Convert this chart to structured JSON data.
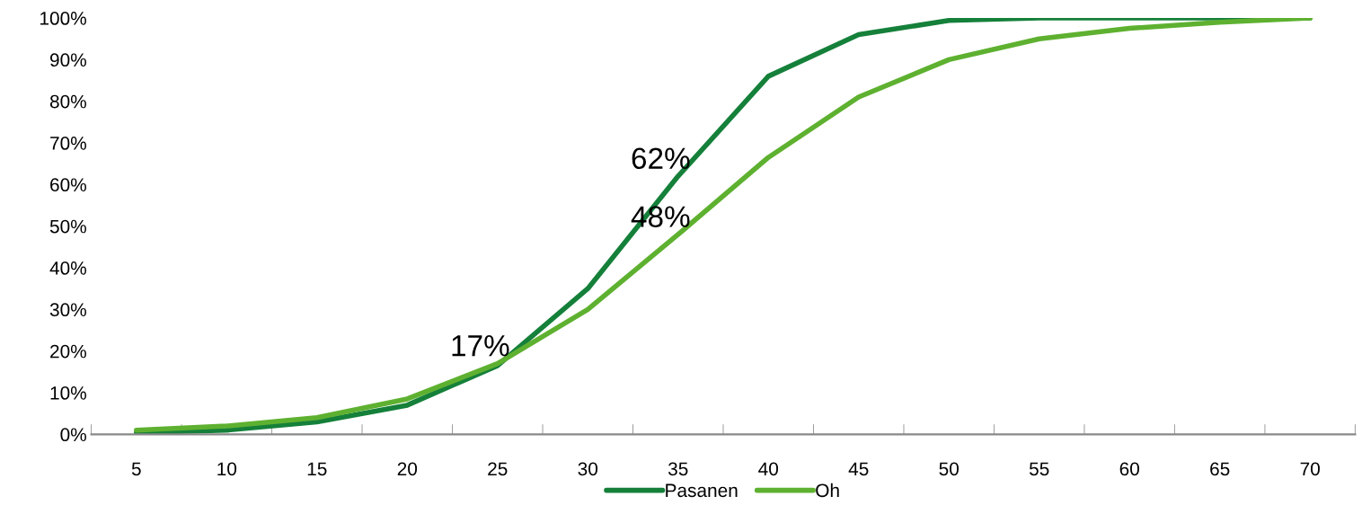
{
  "chart_data": {
    "type": "line",
    "categories": [
      "5",
      "10",
      "15",
      "20",
      "25",
      "30",
      "35",
      "40",
      "45",
      "50",
      "55",
      "60",
      "65",
      "70"
    ],
    "series": [
      {
        "name": "Pasanen",
        "color": "#15803a",
        "values": [
          0.4,
          1,
          3,
          7,
          16.5,
          35,
          62,
          86,
          96,
          99.4,
          100,
          100,
          100,
          100
        ],
        "value_labels": [
          null,
          null,
          null,
          null,
          null,
          null,
          "62%",
          null,
          null,
          null,
          null,
          null,
          null,
          null
        ]
      },
      {
        "name": "Oh",
        "color": "#5eb130",
        "values": [
          1,
          2,
          4,
          8.5,
          17,
          30,
          48,
          66.5,
          81,
          90,
          95,
          97.5,
          99,
          100
        ],
        "value_labels": [
          null,
          null,
          null,
          null,
          "17%",
          null,
          "48%",
          null,
          null,
          null,
          null,
          null,
          null,
          null
        ]
      }
    ],
    "ylim": [
      0,
      100
    ],
    "yticks": [
      {
        "value": 0,
        "label": "0%"
      },
      {
        "value": 10,
        "label": "10%"
      },
      {
        "value": 20,
        "label": "20%"
      },
      {
        "value": 30,
        "label": "30%"
      },
      {
        "value": 40,
        "label": "40%"
      },
      {
        "value": 50,
        "label": "50%"
      },
      {
        "value": 60,
        "label": "60%"
      },
      {
        "value": 70,
        "label": "70%"
      },
      {
        "value": 80,
        "label": "80%"
      },
      {
        "value": 90,
        "label": "90%"
      },
      {
        "value": 100,
        "label": "100%"
      }
    ],
    "grid": false,
    "legend": "bottom",
    "marker": "none",
    "line_style": "solid"
  }
}
